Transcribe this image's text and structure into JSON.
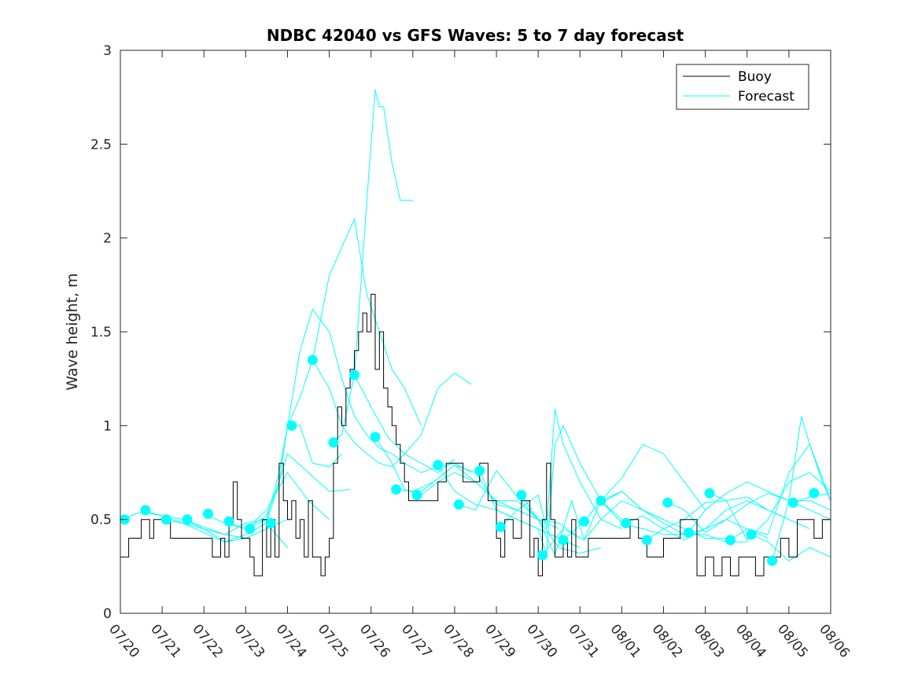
{
  "chart_data": {
    "type": "line",
    "title": "NDBC 42040 vs GFS Waves: 5 to 7 day forecast",
    "xlabel": "",
    "ylabel": "Wave height, m",
    "xlim": [
      0,
      17
    ],
    "ylim": [
      0,
      3
    ],
    "x_tick_labels": [
      "07/20",
      "07/21",
      "07/22",
      "07/23",
      "07/24",
      "07/25",
      "07/26",
      "07/27",
      "07/28",
      "07/29",
      "07/30",
      "07/31",
      "08/01",
      "08/02",
      "08/03",
      "08/04",
      "08/05",
      "08/06"
    ],
    "y_ticks": [
      0,
      0.5,
      1,
      1.5,
      2,
      2.5,
      3
    ],
    "y_tick_labels": [
      "0",
      "0.5",
      "1",
      "1.5",
      "2",
      "2.5",
      "3"
    ],
    "grid": false,
    "legend_position": "top-right",
    "colors": {
      "buoy": "#000000",
      "forecast": "#00ffff",
      "axes": "#262626"
    },
    "legend": {
      "buoy": "Buoy",
      "forecast": "Forecast"
    },
    "buoy": {
      "x": [
        0,
        0.1,
        0.2,
        0.4,
        0.5,
        0.6,
        0.7,
        0.8,
        1.0,
        1.2,
        1.4,
        1.6,
        1.8,
        2.0,
        2.2,
        2.4,
        2.5,
        2.6,
        2.7,
        2.8,
        2.9,
        3.0,
        3.1,
        3.2,
        3.3,
        3.4,
        3.5,
        3.6,
        3.7,
        3.8,
        3.9,
        4.0,
        4.1,
        4.2,
        4.3,
        4.4,
        4.5,
        4.6,
        4.7,
        4.8,
        4.9,
        5.0,
        5.1,
        5.2,
        5.3,
        5.4,
        5.5,
        5.6,
        5.7,
        5.8,
        5.9,
        6.0,
        6.1,
        6.2,
        6.3,
        6.4,
        6.5,
        6.6,
        6.7,
        6.8,
        6.9,
        7.0,
        7.2,
        7.4,
        7.6,
        7.8,
        8.0,
        8.2,
        8.4,
        8.6,
        8.8,
        9.0,
        9.1,
        9.2,
        9.4,
        9.6,
        9.8,
        9.9,
        10.0,
        10.1,
        10.2,
        10.3,
        10.4,
        10.5,
        10.6,
        10.7,
        10.8,
        10.9,
        11.0,
        11.2,
        11.4,
        11.6,
        11.8,
        12.0,
        12.2,
        12.4,
        12.6,
        12.8,
        13.0,
        13.2,
        13.4,
        13.6,
        13.8,
        14.0,
        14.2,
        14.4,
        14.6,
        14.8,
        15.0,
        15.2,
        15.4,
        15.6,
        15.8,
        16.0,
        16.2,
        16.4,
        16.6,
        16.8,
        17.0
      ],
      "y": [
        0.3,
        0.3,
        0.4,
        0.4,
        0.5,
        0.5,
        0.4,
        0.5,
        0.5,
        0.4,
        0.4,
        0.4,
        0.4,
        0.4,
        0.3,
        0.4,
        0.3,
        0.5,
        0.7,
        0.5,
        0.4,
        0.4,
        0.3,
        0.2,
        0.2,
        0.5,
        0.3,
        0.5,
        0.3,
        0.8,
        0.6,
        0.5,
        0.6,
        0.4,
        0.5,
        0.3,
        0.6,
        0.3,
        0.3,
        0.2,
        0.3,
        0.4,
        0.8,
        1.1,
        1.0,
        1.2,
        1.3,
        1.4,
        1.5,
        1.6,
        1.5,
        1.7,
        1.3,
        1.5,
        1.2,
        1.1,
        1.0,
        0.9,
        0.8,
        0.7,
        0.6,
        0.6,
        0.6,
        0.6,
        0.7,
        0.8,
        0.8,
        0.7,
        0.7,
        0.8,
        0.6,
        0.4,
        0.3,
        0.5,
        0.4,
        0.6,
        0.3,
        0.4,
        0.2,
        0.5,
        0.8,
        0.5,
        0.3,
        0.3,
        0.4,
        0.3,
        0.5,
        0.3,
        0.3,
        0.4,
        0.4,
        0.4,
        0.4,
        0.4,
        0.5,
        0.4,
        0.3,
        0.3,
        0.4,
        0.4,
        0.5,
        0.5,
        0.2,
        0.3,
        0.2,
        0.3,
        0.2,
        0.3,
        0.3,
        0.2,
        0.3,
        0.3,
        0.4,
        0.3,
        0.5,
        0.5,
        0.4,
        0.5,
        0.5
      ]
    },
    "forecast_series": [
      {
        "x": [
          0,
          0.5,
          1,
          1.5,
          2,
          2.5,
          3
        ],
        "y": [
          0.5,
          0.54,
          0.52,
          0.48,
          0.45,
          0.42,
          0.4
        ]
      },
      {
        "x": [
          0.5,
          1,
          1.5,
          2,
          2.5,
          3,
          3.5
        ],
        "y": [
          0.55,
          0.52,
          0.5,
          0.46,
          0.42,
          0.48,
          0.5
        ]
      },
      {
        "x": [
          1,
          1.5,
          2,
          2.5,
          3,
          3.5,
          4
        ],
        "y": [
          0.5,
          0.48,
          0.43,
          0.38,
          0.4,
          0.45,
          0.5
        ]
      },
      {
        "x": [
          1.5,
          2,
          2.5,
          3,
          3.5,
          4
        ],
        "y": [
          0.5,
          0.45,
          0.38,
          0.42,
          0.48,
          0.35
        ]
      },
      {
        "x": [
          2,
          2.5,
          3,
          3.5,
          4,
          4.5,
          5
        ],
        "y": [
          0.53,
          0.48,
          0.45,
          0.55,
          0.75,
          0.6,
          0.5
        ]
      },
      {
        "x": [
          2.5,
          3,
          3.5,
          3.8,
          4,
          4.5,
          5,
          5.5
        ],
        "y": [
          0.49,
          0.45,
          0.52,
          0.7,
          0.85,
          0.75,
          0.65,
          0.66
        ]
      },
      {
        "x": [
          3,
          3.5,
          3.8,
          4,
          4.3,
          4.6,
          5,
          5.3
        ],
        "y": [
          0.45,
          0.5,
          0.75,
          1.0,
          1.0,
          0.8,
          0.78,
          0.85
        ]
      },
      {
        "x": [
          3.5,
          3.8,
          4,
          4.3,
          4.6,
          5,
          5.3,
          5.6,
          5.9,
          6.2,
          6.5,
          6.8,
          7.2,
          7.6,
          8,
          8.4
        ],
        "y": [
          0.48,
          0.7,
          1.0,
          1.4,
          1.62,
          1.5,
          1.25,
          1.05,
          0.95,
          0.88,
          0.85,
          0.8,
          0.75,
          0.78,
          0.8,
          0.75
        ]
      },
      {
        "x": [
          4,
          4.3,
          4.6,
          5,
          5.3,
          5.6,
          5.9,
          6.2,
          6.5,
          6.8,
          7.2
        ],
        "y": [
          1.0,
          1.15,
          1.35,
          1.8,
          1.95,
          2.1,
          1.7,
          1.5,
          1.3,
          1.2,
          1.0
        ]
      },
      {
        "x": [
          4.6,
          5,
          5.3,
          5.6,
          5.9,
          6.2,
          6.5,
          6.8,
          7.2,
          7.6,
          8,
          8.4
        ],
        "y": [
          1.35,
          1.2,
          1.0,
          0.91,
          0.85,
          0.8,
          0.78,
          0.85,
          0.95,
          1.2,
          1.28,
          1.22
        ]
      },
      {
        "x": [
          5,
          5.3,
          5.6,
          5.9,
          6,
          6.1,
          6.2,
          6.3,
          6.5,
          6.7,
          7
        ],
        "y": [
          0.91,
          0.95,
          1.27,
          2.2,
          2.5,
          2.79,
          2.7,
          2.7,
          2.4,
          2.2,
          2.2
        ]
      },
      {
        "x": [
          5.6,
          6,
          6.4,
          6.8,
          7.2,
          7.6,
          8
        ],
        "y": [
          1.27,
          1.1,
          0.94,
          0.85,
          0.8,
          0.75,
          0.82
        ]
      },
      {
        "x": [
          6.1,
          6.5,
          6.8,
          7.2,
          7.6,
          8,
          8.5,
          9,
          9.5,
          10
        ],
        "y": [
          0.94,
          0.8,
          0.66,
          0.63,
          0.7,
          0.75,
          0.7,
          0.6,
          0.6,
          0.5
        ]
      },
      {
        "x": [
          6.6,
          7,
          7.5,
          8,
          8.5,
          9,
          9.5,
          10,
          10.5
        ],
        "y": [
          0.66,
          0.65,
          0.7,
          0.79,
          0.7,
          0.6,
          0.55,
          0.5,
          0.45
        ]
      },
      {
        "x": [
          7.1,
          7.5,
          8,
          8.5,
          9,
          9.5,
          10,
          10.5,
          11
        ],
        "y": [
          0.63,
          0.7,
          0.79,
          0.75,
          0.58,
          0.55,
          0.5,
          0.48,
          0.4
        ]
      },
      {
        "x": [
          7.6,
          8,
          8.5,
          9,
          9.5,
          10,
          10.5,
          11
        ],
        "y": [
          0.79,
          0.65,
          0.58,
          0.55,
          0.5,
          0.45,
          0.4,
          0.35
        ]
      },
      {
        "x": [
          8.1,
          8.5,
          9,
          9.5,
          10,
          10.5,
          11,
          11.5
        ],
        "y": [
          0.58,
          0.55,
          0.76,
          0.62,
          0.5,
          0.35,
          0.32,
          0.35
        ]
      },
      {
        "x": [
          8.6,
          9,
          9.5,
          10,
          10.2,
          10.4,
          10.6,
          11,
          11.5,
          12
        ],
        "y": [
          0.76,
          0.55,
          0.5,
          0.45,
          0.31,
          0.9,
          1.0,
          0.8,
          0.6,
          0.5
        ]
      },
      {
        "x": [
          9.1,
          9.5,
          10,
          10.2,
          10.4,
          10.6,
          11,
          11.5,
          12
        ],
        "y": [
          0.46,
          0.55,
          0.63,
          0.45,
          1.09,
          0.9,
          0.7,
          0.5,
          0.45
        ]
      },
      {
        "x": [
          9.6,
          10,
          10.4,
          10.8,
          11.1,
          11.5,
          12,
          12.5,
          13
        ],
        "y": [
          0.63,
          0.5,
          0.31,
          0.6,
          0.39,
          0.5,
          0.6,
          0.55,
          0.5
        ]
      },
      {
        "x": [
          10.1,
          10.6,
          11.1,
          11.5,
          12,
          12.5,
          13,
          13.5,
          14
        ],
        "y": [
          0.31,
          0.45,
          0.39,
          0.6,
          0.72,
          0.9,
          0.85,
          0.7,
          0.55
        ]
      },
      {
        "x": [
          10.6,
          11.1,
          11.5,
          12,
          12.5,
          13,
          13.5,
          14,
          14.5
        ],
        "y": [
          0.39,
          0.49,
          0.6,
          0.65,
          0.55,
          0.5,
          0.45,
          0.4,
          0.4
        ]
      },
      {
        "x": [
          11.1,
          11.5,
          12,
          12.5,
          13,
          13.5,
          14,
          14.5,
          15
        ],
        "y": [
          0.49,
          0.6,
          0.48,
          0.45,
          0.42,
          0.42,
          0.42,
          0.38,
          0.38
        ]
      },
      {
        "x": [
          11.6,
          12,
          12.5,
          13,
          13.5,
          14,
          14.5,
          15,
          15.5
        ],
        "y": [
          0.6,
          0.65,
          0.55,
          0.48,
          0.42,
          0.45,
          0.5,
          0.45,
          0.4
        ]
      },
      {
        "x": [
          12.1,
          12.5,
          13,
          13.5,
          14,
          14.5,
          15,
          15.5,
          16
        ],
        "y": [
          0.48,
          0.52,
          0.45,
          0.39,
          0.45,
          0.55,
          0.6,
          0.55,
          0.5
        ]
      },
      {
        "x": [
          12.6,
          13,
          13.5,
          14,
          14.5,
          15,
          15.5,
          16,
          16.5
        ],
        "y": [
          0.39,
          0.45,
          0.5,
          0.59,
          0.6,
          0.62,
          0.55,
          0.5,
          0.45
        ]
      },
      {
        "x": [
          13.1,
          13.5,
          14,
          14.5,
          15,
          15.5,
          16,
          16.5,
          17
        ],
        "y": [
          0.59,
          0.55,
          0.43,
          0.5,
          0.58,
          0.64,
          0.6,
          0.6,
          0.55
        ]
      },
      {
        "x": [
          13.6,
          14,
          14.5,
          15,
          15.5,
          16,
          16.5,
          17
        ],
        "y": [
          0.43,
          0.55,
          0.64,
          0.7,
          0.65,
          0.6,
          0.55,
          0.5
        ]
      },
      {
        "x": [
          14.1,
          14.5,
          15,
          15.5,
          16,
          16.5,
          17
        ],
        "y": [
          0.64,
          0.6,
          0.39,
          0.5,
          0.7,
          0.75,
          0.65
        ]
      },
      {
        "x": [
          14.6,
          15,
          15.5,
          16,
          16.5,
          17
        ],
        "y": [
          0.39,
          0.45,
          0.42,
          0.75,
          0.9,
          0.6
        ]
      },
      {
        "x": [
          15.1,
          15.5,
          16,
          16.5,
          17
        ],
        "y": [
          0.42,
          0.38,
          0.28,
          0.35,
          0.3
        ]
      },
      {
        "x": [
          15.6,
          16,
          16.3,
          16.5,
          16.8,
          17
        ],
        "y": [
          0.28,
          0.6,
          1.05,
          0.9,
          0.7,
          0.6
        ]
      },
      {
        "x": [
          16.1,
          16.5,
          17
        ],
        "y": [
          0.59,
          0.62,
          0.64
        ]
      }
    ],
    "forecast_markers": {
      "x": [
        0.1,
        0.6,
        1.1,
        1.6,
        2.1,
        2.6,
        3.1,
        3.6,
        4.1,
        4.6,
        5.1,
        5.6,
        6.1,
        6.6,
        7.1,
        7.6,
        8.1,
        8.6,
        9.1,
        9.6,
        10.1,
        10.6,
        11.1,
        11.5,
        12.1,
        12.6,
        13.1,
        13.6,
        14.1,
        14.6,
        15.1,
        15.6,
        16.1,
        16.6
      ],
      "y": [
        0.5,
        0.55,
        0.5,
        0.5,
        0.53,
        0.49,
        0.45,
        0.48,
        1.0,
        1.35,
        0.91,
        1.27,
        0.94,
        0.66,
        0.63,
        0.79,
        0.58,
        0.76,
        0.46,
        0.63,
        0.31,
        0.39,
        0.49,
        0.6,
        0.48,
        0.39,
        0.59,
        0.43,
        0.64,
        0.39,
        0.42,
        0.28,
        0.59,
        0.64
      ]
    }
  }
}
